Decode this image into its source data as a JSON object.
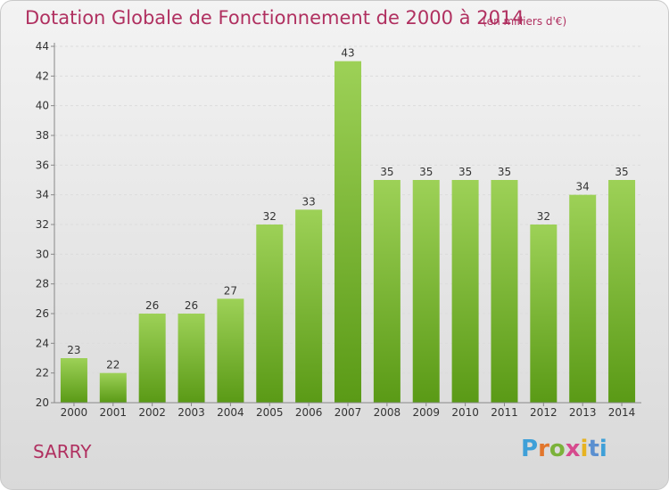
{
  "title": "Dotation Globale de Fonctionnement de 2000 à 2014",
  "unit": "(en milliers d'€)",
  "commune": "SARRY",
  "logo": {
    "letters": [
      "P",
      "r",
      "o",
      "x",
      "i",
      "t",
      "i"
    ]
  },
  "colors": {
    "title": "#b03060",
    "bar_light": "#9dd157",
    "bar_dark": "#5a9a16"
  },
  "chart_data": {
    "type": "bar",
    "title": "Dotation Globale de Fonctionnement de 2000 à 2014",
    "xlabel": "",
    "ylabel": "",
    "categories": [
      "2000",
      "2001",
      "2002",
      "2003",
      "2004",
      "2005",
      "2006",
      "2007",
      "2008",
      "2009",
      "2010",
      "2011",
      "2012",
      "2013",
      "2014"
    ],
    "values": [
      23,
      22,
      26,
      26,
      27,
      32,
      33,
      43,
      35,
      35,
      35,
      35,
      32,
      34,
      35
    ],
    "ylim": [
      20,
      44
    ],
    "yticks": [
      20,
      22,
      24,
      26,
      28,
      30,
      32,
      34,
      36,
      38,
      40,
      42,
      44
    ],
    "grid": true
  }
}
